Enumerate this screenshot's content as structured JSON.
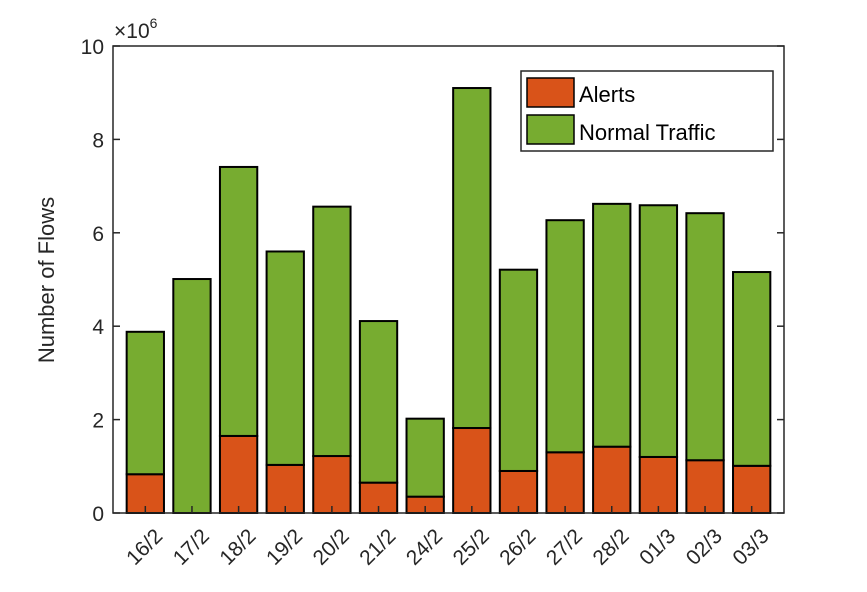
{
  "chart_data": {
    "type": "bar",
    "stacked": true,
    "categories": [
      "16/2",
      "17/2",
      "18/2",
      "19/2",
      "20/2",
      "21/2",
      "24/2",
      "25/2",
      "26/2",
      "27/2",
      "28/2",
      "01/3",
      "02/3",
      "03/3"
    ],
    "series": [
      {
        "name": "Alerts",
        "color": "#D95319",
        "values": [
          0.83,
          0.0,
          1.65,
          1.03,
          1.22,
          0.65,
          0.35,
          1.82,
          0.9,
          1.3,
          1.42,
          1.2,
          1.13,
          1.01
        ]
      },
      {
        "name": "Normal Traffic",
        "color": "#77AC30",
        "values": [
          3.05,
          5.01,
          5.76,
          4.57,
          5.34,
          3.46,
          1.67,
          7.28,
          4.31,
          4.97,
          5.2,
          5.39,
          5.29,
          4.15
        ]
      }
    ],
    "ylabel": "Number of Flows",
    "xlabel": "",
    "y_exponent_label": "×10",
    "y_exponent_power": "6",
    "ylim": [
      0,
      10
    ],
    "yticks": [
      0,
      2,
      4,
      6,
      8,
      10
    ],
    "grid": false,
    "legend_position": "top-right"
  }
}
